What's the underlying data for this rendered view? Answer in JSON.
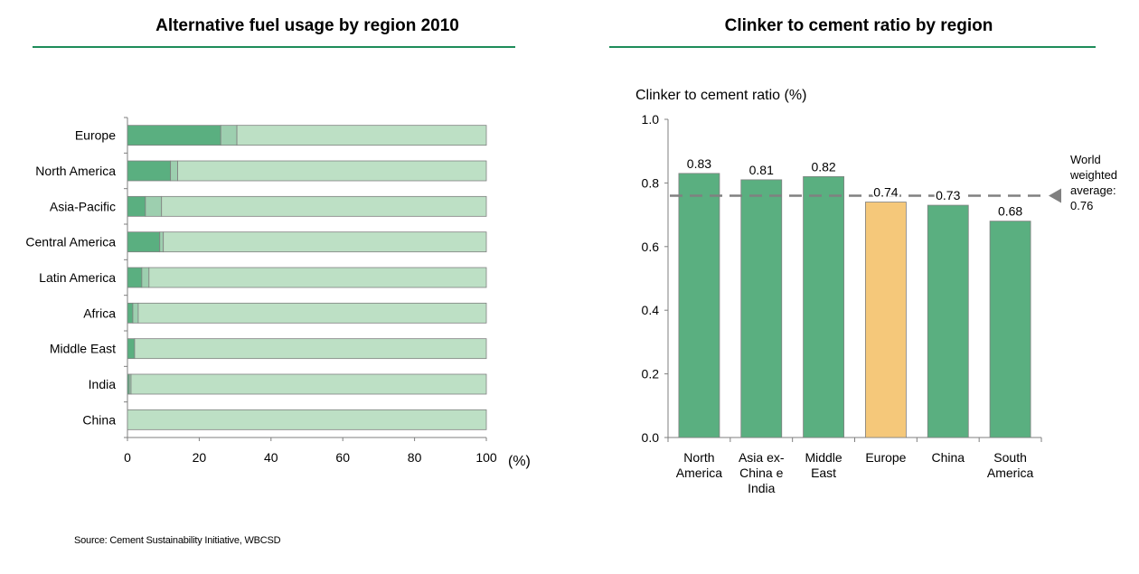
{
  "titles": {
    "left": "Alternative fuel usage by region 2010",
    "right": "Clinker to cement ratio by region"
  },
  "colors": {
    "dark_green": "#5aaf80",
    "mid_green": "#9dcfaf",
    "light_green": "#bde0c5",
    "highlight": "#f5c87a",
    "rule": "#1e8c5a",
    "reference": "#808080"
  },
  "chart_data": [
    {
      "type": "bar",
      "orientation": "horizontal",
      "stacked": true,
      "title": "Alternative fuel usage by region 2010",
      "categories": [
        "Europe",
        "North America",
        "Asia-Pacific",
        "Central America",
        "Latin America",
        "Africa",
        "Middle East",
        "India",
        "China"
      ],
      "series": [
        {
          "values": [
            26,
            12,
            5,
            9,
            4,
            1.5,
            2,
            0.5,
            0
          ]
        },
        {
          "values": [
            4.5,
            2,
            4.5,
            1,
            2,
            1.5,
            0,
            0.5,
            0
          ]
        },
        {
          "values": [
            69.5,
            86,
            90.5,
            90,
            94,
            97,
            98,
            99,
            100
          ]
        }
      ],
      "xlim": [
        0,
        100
      ],
      "xticks": [
        "0",
        "20",
        "40",
        "60",
        "80",
        "100"
      ],
      "xunit": "(%)"
    },
    {
      "type": "bar",
      "title": "Clinker to cement ratio by region",
      "ylabel": "Clinker to cement ratio (%)",
      "categories": [
        [
          "North",
          "America"
        ],
        [
          "Asia ex-",
          "China e",
          "India"
        ],
        [
          "Middle",
          "East"
        ],
        [
          "Europe"
        ],
        [
          "China"
        ],
        [
          "South",
          "America"
        ]
      ],
      "values": [
        0.83,
        0.81,
        0.82,
        0.74,
        0.73,
        0.68
      ],
      "value_labels": [
        "0.83",
        "0.81",
        "0.82",
        "0.74",
        "0.73",
        "0.68"
      ],
      "highlight_index": 3,
      "ylim": [
        0,
        1.0
      ],
      "yticks": [
        "0.0",
        "0.2",
        "0.4",
        "0.6",
        "0.8",
        "1.0"
      ],
      "reference_line": {
        "value": 0.76,
        "label": [
          "World",
          "weighted",
          "average:",
          "0.76"
        ]
      }
    }
  ],
  "source": "Source: Cement Sustainability Initiative, WBCSD"
}
